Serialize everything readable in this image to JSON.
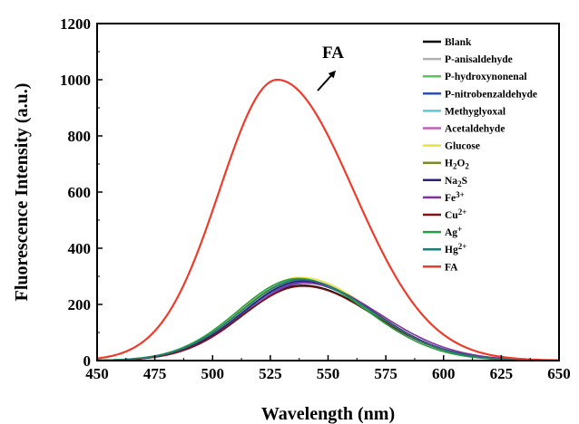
{
  "chart_data": {
    "type": "line",
    "title": "",
    "xlabel": "Wavelength (nm)",
    "ylabel": "Fluorescence Intensity (a.u.)",
    "xlim": [
      450,
      650
    ],
    "ylim": [
      0,
      1200
    ],
    "x_ticks": [
      "450",
      "475",
      "500",
      "525",
      "550",
      "575",
      "600",
      "625",
      "650"
    ],
    "y_ticks": [
      "0",
      "200",
      "400",
      "600",
      "800",
      "1000",
      "1200"
    ],
    "grid": false,
    "legend_position": "top-right",
    "annotation": {
      "text": "FA",
      "arrow": "pointing up-right, above FA peak"
    },
    "series": [
      {
        "name": "Blank",
        "name_html": "Blank",
        "color": "#000000",
        "peak": 268,
        "peak_wl": 539,
        "sigma_left": 26,
        "sigma_right": 31
      },
      {
        "name": "P-anisaldehyde",
        "name_html": "P-anisaldehyde",
        "color": "#b0b0b0",
        "peak": 289,
        "peak_wl": 538,
        "sigma_left": 26,
        "sigma_right": 31
      },
      {
        "name": "P-hydroxynonenal",
        "name_html": "P-hydroxynonenal",
        "color": "#5cc25c",
        "peak": 284,
        "peak_wl": 538,
        "sigma_left": 26,
        "sigma_right": 31
      },
      {
        "name": "P-nitrobenzaldehyde",
        "name_html": "P-nitrobenzaldehyde",
        "color": "#2f4fb0",
        "peak": 278,
        "peak_wl": 539,
        "sigma_left": 26,
        "sigma_right": 31
      },
      {
        "name": "Methyglyoxal",
        "name_html": "Methyglyoxal",
        "color": "#5ec8d8",
        "peak": 286,
        "peak_wl": 538,
        "sigma_left": 26,
        "sigma_right": 31
      },
      {
        "name": "Acetaldehyde",
        "name_html": "Acetaldehyde",
        "color": "#c060b8",
        "peak": 282,
        "peak_wl": 539,
        "sigma_left": 26,
        "sigma_right": 31
      },
      {
        "name": "Glucose",
        "name_html": "Glucose",
        "color": "#e8e040",
        "peak": 296,
        "peak_wl": 538,
        "sigma_left": 26,
        "sigma_right": 31
      },
      {
        "name": "H2O2",
        "name_html": "H<tspan baseline-shift=\"-30%\" font-size=\"9\">2</tspan>O<tspan baseline-shift=\"-30%\" font-size=\"9\">2</tspan>",
        "color": "#7a8a2a",
        "peak": 287,
        "peak_wl": 538,
        "sigma_left": 26,
        "sigma_right": 31
      },
      {
        "name": "Na2S",
        "name_html": "Na<tspan baseline-shift=\"-30%\" font-size=\"9\">2</tspan>S",
        "color": "#28207a",
        "peak": 283,
        "peak_wl": 539,
        "sigma_left": 26,
        "sigma_right": 31
      },
      {
        "name": "Fe3+",
        "name_html": "Fe<tspan baseline-shift=\"40%\" font-size=\"9\">3+</tspan>",
        "color": "#8030a0",
        "peak": 276,
        "peak_wl": 540,
        "sigma_left": 26,
        "sigma_right": 32
      },
      {
        "name": "Cu2+",
        "name_html": "Cu<tspan baseline-shift=\"40%\" font-size=\"9\">2+</tspan>",
        "color": "#7a1515",
        "peak": 265,
        "peak_wl": 539,
        "sigma_left": 26,
        "sigma_right": 31
      },
      {
        "name": "Ag+",
        "name_html": "Ag<tspan baseline-shift=\"40%\" font-size=\"9\">+</tspan>",
        "color": "#20a040",
        "peak": 292,
        "peak_wl": 537,
        "sigma_left": 26,
        "sigma_right": 30
      },
      {
        "name": "Hg2+",
        "name_html": "Hg<tspan baseline-shift=\"40%\" font-size=\"9\">2+</tspan>",
        "color": "#1f7a78",
        "peak": 288,
        "peak_wl": 538,
        "sigma_left": 26,
        "sigma_right": 31
      },
      {
        "name": "FA",
        "name_html": "FA",
        "color": "#ee3c2c",
        "peak": 1000,
        "peak_wl": 528,
        "sigma_left": 25,
        "sigma_right": 33
      }
    ]
  }
}
